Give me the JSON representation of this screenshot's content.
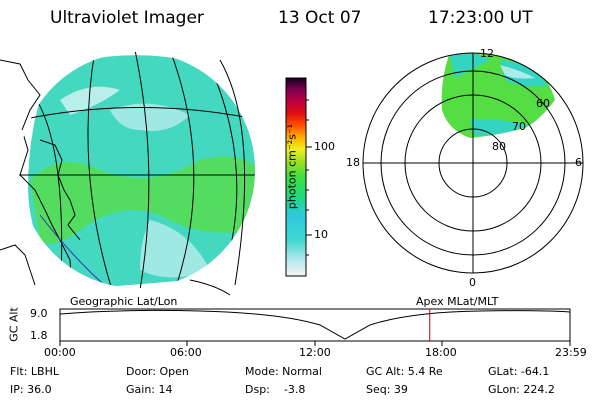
{
  "header": {
    "title": "Ultraviolet Imager",
    "date": "13 Oct 07",
    "time": "17:23:00 UT"
  },
  "colorbar": {
    "unit_label": "photon cm⁻²s⁻¹",
    "ticks": [
      "100",
      "10"
    ]
  },
  "polar_plot": {
    "mlt_labels": {
      "top": "12",
      "bottom": "0",
      "left": "18",
      "right": "6"
    },
    "lat_labels": [
      "60",
      "70",
      "80"
    ]
  },
  "timeline": {
    "left_label": "Geographic Lat/Lon",
    "right_label": "Apex MLat/MLT",
    "axis_title": "GC Alt",
    "y_ticks": [
      "9.0",
      "1.8"
    ],
    "x_ticks": [
      "00:00",
      "06:00",
      "12:00",
      "18:00",
      "23:59"
    ],
    "current_time_fraction": 0.725
  },
  "info": {
    "filter": "Flt: LBHL",
    "ip": "IP: 36.0",
    "door": "Door: Open",
    "gain": "Gain: 14",
    "mode": "Mode: Normal",
    "dsp": "Dsp:    -3.8",
    "gc_alt": "GC Alt: 5.4 Re",
    "seq": "Seq: 39",
    "glat": "GLat: -64.1",
    "glon": "GLon: 224.2"
  },
  "colors": {
    "background": "#ffffff",
    "aurora_green": "#44dd33",
    "aurora_teal": "#33d5c0",
    "current_time_marker": "#c00000"
  }
}
